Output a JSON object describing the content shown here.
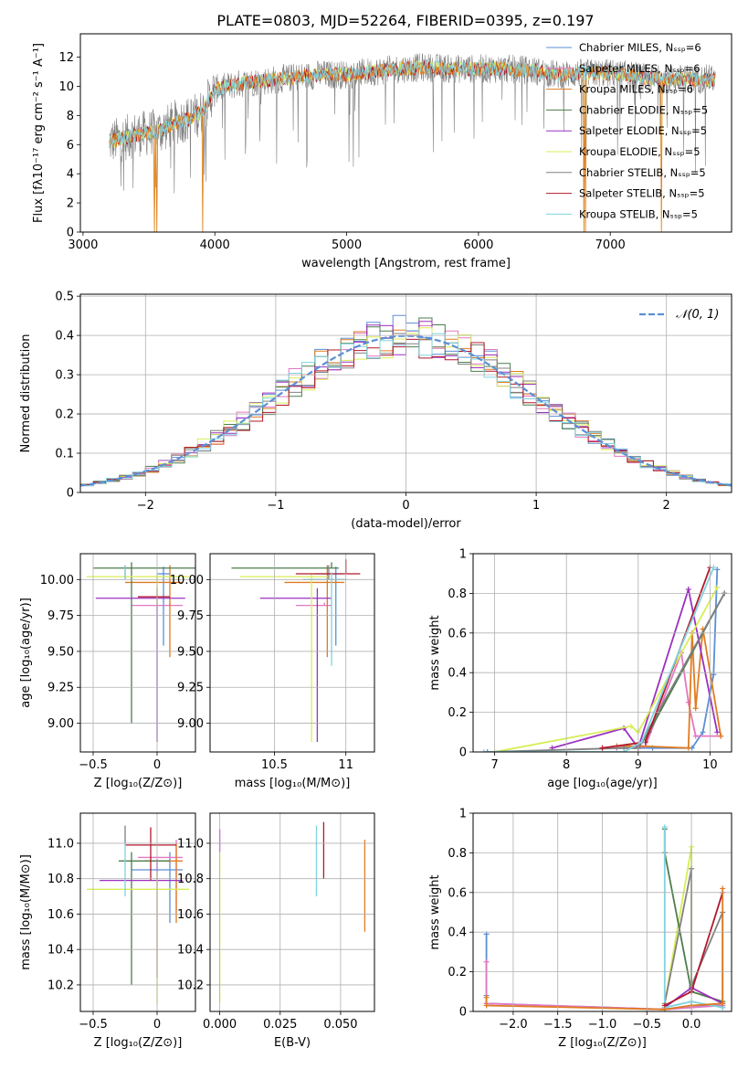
{
  "figure": {
    "title": "PLATE=0803, MJD=52264, FIBERID=0395, z=0.197"
  },
  "colors": {
    "ch_miles": "#5b8fd6",
    "sa_miles": "#e377c2",
    "kr_miles": "#e07b20",
    "ch_elodie": "#4c7d4c",
    "sa_elodie": "#9b30c0",
    "kr_elodie": "#d7ee55",
    "ch_stelib": "#808080",
    "sa_stelib": "#b2182b",
    "kr_stelib": "#7fd3e0"
  },
  "chart_data": [
    {
      "id": "spectrum",
      "type": "line",
      "title": "PLATE=0803, MJD=52264, FIBERID=0395, z=0.197",
      "xlabel": "wavelength [Angstrom, rest frame]",
      "ylabel": "Flux [fλ10⁻¹⁷ erg cm⁻² s⁻¹ A⁻¹]",
      "xlim": [
        2980,
        7920
      ],
      "ylim": [
        0,
        13.6
      ],
      "xticks": [
        3000,
        4000,
        5000,
        6000,
        7000
      ],
      "yticks": [
        0,
        2,
        4,
        6,
        8,
        10,
        12
      ],
      "grid": false,
      "legend_position": "top-right",
      "legend": [
        {
          "key": "ch_miles",
          "label": "Chabrier MILES, Nₛₛₚ=6"
        },
        {
          "key": "sa_miles",
          "label": "Salpeter MILES, Nₛₛₚ=6"
        },
        {
          "key": "kr_miles",
          "label": "Kroupa MILES, Nₛₛₚ=6"
        },
        {
          "key": "ch_elodie",
          "label": "Chabrier ELODIE, Nₛₛₚ=5"
        },
        {
          "key": "sa_elodie",
          "label": "Salpeter ELODIE, Nₛₛₚ=5"
        },
        {
          "key": "kr_elodie",
          "label": "Kroupa ELODIE, Nₛₛₚ=5"
        },
        {
          "key": "ch_stelib",
          "label": "Chabrier STELIB, Nₛₛₚ=5"
        },
        {
          "key": "sa_stelib",
          "label": "Salpeter STELIB, Nₛₛₚ=5"
        },
        {
          "key": "kr_stelib",
          "label": "Kroupa STELIB, Nₛₛₚ=5"
        }
      ],
      "continuum": [
        [
          3200,
          6.2
        ],
        [
          3300,
          6.4
        ],
        [
          3400,
          6.7
        ],
        [
          3500,
          6.8
        ],
        [
          3600,
          7.0
        ],
        [
          3700,
          7.5
        ],
        [
          3800,
          7.8
        ],
        [
          3900,
          8.2
        ],
        [
          4000,
          9.8
        ],
        [
          4200,
          10.2
        ],
        [
          4400,
          10.4
        ],
        [
          4600,
          10.6
        ],
        [
          4800,
          10.8
        ],
        [
          5000,
          10.8
        ],
        [
          5200,
          11.0
        ],
        [
          5400,
          11.2
        ],
        [
          5600,
          11.3
        ],
        [
          5800,
          11.2
        ],
        [
          6000,
          11.2
        ],
        [
          6200,
          11.2
        ],
        [
          6400,
          11.1
        ],
        [
          6600,
          10.8
        ],
        [
          6800,
          10.9
        ],
        [
          7000,
          10.9
        ],
        [
          7200,
          10.7
        ],
        [
          7300,
          10.5
        ]
      ],
      "model_drops": [
        [
          3540,
          0
        ],
        [
          3560,
          0
        ],
        [
          3910,
          0
        ],
        [
          6800,
          0
        ],
        [
          6810,
          0
        ],
        [
          7390,
          0
        ]
      ]
    },
    {
      "id": "residuals",
      "type": "histogram",
      "xlabel": "(data-model)/error",
      "ylabel": "Normed distribution",
      "xlim": [
        -2.5,
        2.5
      ],
      "ylim": [
        0,
        0.505
      ],
      "xticks": [
        -2,
        -1,
        0,
        1,
        2
      ],
      "yticks": [
        0.0,
        0.1,
        0.2,
        0.3,
        0.4,
        0.5
      ],
      "grid": true,
      "legend_position": "top-right",
      "reference_label": "𝒩(0, 1)",
      "bin_edges_start": -2.5,
      "bin_width": 0.1
    },
    {
      "id": "age_vs_z",
      "type": "errorbar",
      "xlabel": "Z [log₁₀(Z/Z⊙)]",
      "ylabel": "age  [log₁₀(age/yr)]",
      "xlim": [
        -0.6,
        0.3
      ],
      "ylim": [
        8.8,
        10.18
      ],
      "xticks": [
        -0.5,
        0.0
      ],
      "yticks": [
        9.0,
        9.25,
        9.5,
        9.75,
        10.0
      ],
      "ytick_labels": [
        "9.00",
        "9.25",
        "9.50",
        "9.75",
        "10.00"
      ],
      "grid": true,
      "points": [
        {
          "key": "ch_miles",
          "x": 0.05,
          "xerr": [
            0.05,
            0.05
          ],
          "y": 10.04,
          "yerr": [
            0.5,
            0.05
          ]
        },
        {
          "key": "sa_miles",
          "x": 0.1,
          "xerr": [
            0.3,
            0.1
          ],
          "y": 9.82,
          "yerr": [
            0.0,
            0.02
          ]
        },
        {
          "key": "kr_miles",
          "x": 0.1,
          "xerr": [
            0.35,
            0.1
          ],
          "y": 9.98,
          "yerr": [
            0.52,
            0.12
          ]
        },
        {
          "key": "ch_elodie",
          "x": -0.2,
          "xerr": [
            0.3,
            0.5
          ],
          "y": 10.08,
          "yerr": [
            1.08,
            0.04
          ]
        },
        {
          "key": "sa_elodie",
          "x": 0.0,
          "xerr": [
            0.48,
            0.22
          ],
          "y": 9.87,
          "yerr": [
            1.0,
            0.07
          ]
        },
        {
          "key": "kr_elodie",
          "x": 0.0,
          "xerr": [
            0.55,
            0.25
          ],
          "y": 10.02,
          "yerr": [
            0.2,
            0.02
          ]
        },
        {
          "key": "ch_stelib",
          "x": -0.25,
          "xerr": [
            0.0,
            0.0
          ],
          "y": 10.0,
          "yerr": [
            0.0,
            0.1
          ]
        },
        {
          "key": "sa_stelib",
          "x": 0.05,
          "xerr": [
            0.2,
            0.05
          ],
          "y": 9.88,
          "yerr": [
            0.0,
            0.0
          ]
        },
        {
          "key": "kr_stelib",
          "x": -0.25,
          "xerr": [
            0.0,
            0.0
          ],
          "y": 10.0,
          "yerr": [
            0.0,
            0.1
          ]
        }
      ]
    },
    {
      "id": "age_vs_mass",
      "type": "errorbar",
      "xlabel": "mass [log₁₀(M/M⊙)]",
      "ylabel": "",
      "xlim": [
        10.05,
        11.2
      ],
      "ylim": [
        8.8,
        10.18
      ],
      "xticks": [
        10.5,
        11.0
      ],
      "yticks": [
        9.0,
        9.25,
        9.5,
        9.75,
        10.0
      ],
      "ytick_labels": [
        "9.00",
        "9.25",
        "9.50",
        "9.75",
        "10.00"
      ],
      "grid": true,
      "points": [
        {
          "key": "ch_miles",
          "x": 10.93,
          "xerr": [
            0.15,
            0.05
          ],
          "y": 10.04,
          "yerr": [
            0.5,
            0.05
          ]
        },
        {
          "key": "sa_miles",
          "x": 10.85,
          "xerr": [
            0.2,
            0.05
          ],
          "y": 9.82,
          "yerr": [
            0.0,
            0.02
          ]
        },
        {
          "key": "kr_miles",
          "x": 10.87,
          "xerr": [
            0.3,
            0.12
          ],
          "y": 9.98,
          "yerr": [
            0.52,
            0.12
          ]
        },
        {
          "key": "ch_elodie",
          "x": 10.9,
          "xerr": [
            0.7,
            0.05
          ],
          "y": 10.08,
          "yerr": [
            0.0,
            0.04
          ]
        },
        {
          "key": "sa_elodie",
          "x": 10.8,
          "xerr": [
            0.4,
            0.1
          ],
          "y": 9.87,
          "yerr": [
            1.0,
            0.07
          ]
        },
        {
          "key": "kr_elodie",
          "x": 10.76,
          "xerr": [
            0.5,
            0.12
          ],
          "y": 10.02,
          "yerr": [
            1.15,
            0.02
          ]
        },
        {
          "key": "ch_stelib",
          "x": 10.88,
          "xerr": [
            0.0,
            0.0
          ],
          "y": 10.0,
          "yerr": [
            0.0,
            0.1
          ]
        },
        {
          "key": "sa_stelib",
          "x": 11.0,
          "xerr": [
            0.35,
            0.1
          ],
          "y": 10.04,
          "yerr": [
            0.0,
            0.1
          ]
        },
        {
          "key": "kr_stelib",
          "x": 10.9,
          "xerr": [
            0.2,
            0.1
          ],
          "y": 10.0,
          "yerr": [
            0.6,
            0.05
          ]
        }
      ]
    },
    {
      "id": "mass_weight_vs_age",
      "type": "line",
      "xlabel": "age  [log₁₀(age/yr)]",
      "ylabel": "mass weight",
      "xlim": [
        6.7,
        10.3
      ],
      "ylim": [
        0,
        1.0
      ],
      "xticks": [
        7,
        8,
        9,
        10
      ],
      "yticks": [
        0.0,
        0.2,
        0.4,
        0.6,
        0.8,
        1.0
      ],
      "grid": true,
      "series": [
        {
          "key": "ch_miles",
          "x": [
            8.7,
            9.0,
            9.2,
            9.75,
            9.9,
            10.05,
            10.1
          ],
          "y": [
            0.02,
            0.02,
            0.02,
            0.02,
            0.1,
            0.39,
            0.92
          ]
        },
        {
          "key": "sa_miles",
          "x": [
            8.7,
            9.0,
            9.1,
            9.6,
            9.7,
            9.8,
            10.15
          ],
          "y": [
            0.02,
            0.02,
            0.03,
            0.5,
            0.25,
            0.08,
            0.08
          ]
        },
        {
          "key": "kr_miles",
          "x": [
            8.7,
            9.0,
            9.7,
            9.75,
            9.8,
            9.9,
            10.15
          ],
          "y": [
            0.03,
            0.03,
            0.02,
            0.6,
            0.22,
            0.62,
            0.08
          ]
        },
        {
          "key": "ch_elodie",
          "x": [
            8.8,
            9.0,
            9.15,
            10.2
          ],
          "y": [
            0.02,
            0.02,
            0.1,
            0.8
          ]
        },
        {
          "key": "sa_elodie",
          "x": [
            7.8,
            8.8,
            9.0,
            9.7,
            10.1
          ],
          "y": [
            0.02,
            0.12,
            0.02,
            0.82,
            0.1
          ]
        },
        {
          "key": "kr_elodie",
          "x": [
            7.0,
            8.9,
            9.0,
            10.1
          ],
          "y": [
            0.0,
            0.13,
            0.1,
            0.83
          ]
        },
        {
          "key": "ch_stelib",
          "x": [
            6.9,
            8.8,
            9.0,
            10.2
          ],
          "y": [
            0.0,
            0.02,
            0.02,
            0.8
          ]
        },
        {
          "key": "sa_stelib",
          "x": [
            8.5,
            9.1,
            10.0
          ],
          "y": [
            0.02,
            0.05,
            0.93
          ]
        },
        {
          "key": "kr_stelib",
          "x": [
            6.85,
            8.8,
            9.05,
            10.05
          ],
          "y": [
            0.0,
            0.0,
            0.05,
            0.93
          ]
        }
      ]
    },
    {
      "id": "mass_vs_z",
      "type": "errorbar",
      "xlabel": "Z [log₁₀(Z/Z⊙)]",
      "ylabel": "mass [log₁₀(M/M⊙)]",
      "xlim": [
        -0.6,
        0.3
      ],
      "ylim": [
        10.05,
        11.17
      ],
      "xticks": [
        -0.5,
        0.0
      ],
      "yticks": [
        10.2,
        10.4,
        10.6,
        10.8,
        11.0
      ],
      "ytick_labels": [
        "10.2",
        "10.4",
        "10.6",
        "10.8",
        "11.0"
      ],
      "grid": true,
      "points": [
        {
          "key": "ch_miles",
          "x": 0.1,
          "xerr": [
            0.3,
            0.1
          ],
          "y": 10.85,
          "yerr": [
            0.3,
            0.1
          ]
        },
        {
          "key": "sa_miles",
          "x": 0.15,
          "xerr": [
            0.3,
            0.05
          ],
          "y": 10.92,
          "yerr": [
            0.3,
            0.1
          ]
        },
        {
          "key": "kr_miles",
          "x": 0.15,
          "xerr": [
            0.25,
            0.05
          ],
          "y": 10.9,
          "yerr": [
            0.35,
            0.1
          ]
        },
        {
          "key": "ch_elodie",
          "x": -0.2,
          "xerr": [
            0.1,
            0.3
          ],
          "y": 10.9,
          "yerr": [
            0.7,
            0.05
          ]
        },
        {
          "key": "sa_elodie",
          "x": 0.0,
          "xerr": [
            0.45,
            0.2
          ],
          "y": 10.79,
          "yerr": [
            0.55,
            0.12
          ]
        },
        {
          "key": "kr_elodie",
          "x": 0.0,
          "xerr": [
            0.55,
            0.25
          ],
          "y": 10.74,
          "yerr": [
            0.65,
            0.1
          ]
        },
        {
          "key": "ch_stelib",
          "x": -0.25,
          "xerr": [
            0.0,
            0.0
          ],
          "y": 11.0,
          "yerr": [
            0.0,
            0.1
          ]
        },
        {
          "key": "sa_stelib",
          "x": -0.05,
          "xerr": [
            0.2,
            0.2
          ],
          "y": 10.99,
          "yerr": [
            0.2,
            0.1
          ]
        },
        {
          "key": "kr_stelib",
          "x": -0.25,
          "xerr": [
            0.0,
            0.0
          ],
          "y": 10.9,
          "yerr": [
            0.2,
            0.1
          ]
        }
      ]
    },
    {
      "id": "mass_vs_ebv",
      "type": "errorbar",
      "xlabel": "E(B-V)",
      "ylabel": "",
      "xlim": [
        -0.004,
        0.064
      ],
      "ylim": [
        10.05,
        11.17
      ],
      "xticks": [
        0.0,
        0.025,
        0.05
      ],
      "xtick_labels": [
        "0.000",
        "0.025",
        "0.050"
      ],
      "yticks": [
        10.2,
        10.4,
        10.6,
        10.8,
        11.0
      ],
      "ytick_labels": [
        "10.2",
        "10.4",
        "10.6",
        "10.8",
        "11.0"
      ],
      "grid": true,
      "points": [
        {
          "key": "sa_elodie",
          "x": 0.0,
          "xerr": [
            0,
            0
          ],
          "y": 11.0,
          "yerr": [
            0.05,
            0.08
          ]
        },
        {
          "key": "kr_elodie",
          "x": 0.0,
          "xerr": [
            0,
            0
          ],
          "y": 10.75,
          "yerr": [
            0.65,
            0.2
          ]
        },
        {
          "key": "kr_stelib",
          "x": 0.04,
          "xerr": [
            0,
            0
          ],
          "y": 10.9,
          "yerr": [
            0.2,
            0.2
          ]
        },
        {
          "key": "sa_stelib",
          "x": 0.043,
          "xerr": [
            0,
            0
          ],
          "y": 11.0,
          "yerr": [
            0.2,
            0.12
          ]
        },
        {
          "key": "kr_miles",
          "x": 0.06,
          "xerr": [
            0,
            0
          ],
          "y": 10.75,
          "yerr": [
            0.25,
            0.27
          ]
        }
      ]
    },
    {
      "id": "mass_weight_vs_z",
      "type": "line",
      "xlabel": "Z [log₁₀(Z/Z⊙)]",
      "ylabel": "mass weight",
      "xlim": [
        -2.45,
        0.45
      ],
      "ylim": [
        0,
        1.0
      ],
      "xticks": [
        -2.0,
        -1.5,
        -1.0,
        -0.5,
        0.0
      ],
      "xtick_labels": [
        "−2.0",
        "−1.5",
        "−1.0",
        "−0.5",
        "0.0"
      ],
      "yticks": [
        0.0,
        0.2,
        0.4,
        0.6,
        0.8,
        1.0
      ],
      "grid": true,
      "series": [
        {
          "key": "ch_miles",
          "x": [
            -2.3,
            -2.3,
            -2.3,
            -0.3,
            0.0,
            0.35
          ],
          "y": [
            0.39,
            0.08,
            0.04,
            0.01,
            0.03,
            0.03
          ]
        },
        {
          "key": "sa_miles",
          "x": [
            -2.3,
            -2.3,
            -0.3,
            0.0,
            0.35
          ],
          "y": [
            0.25,
            0.04,
            0.01,
            0.02,
            0.03
          ]
        },
        {
          "key": "kr_elodie",
          "x": [
            -0.3,
            0.0,
            0.0,
            0.35
          ],
          "y": [
            0.04,
            0.83,
            0.1,
            0.05
          ]
        },
        {
          "key": "ch_elodie",
          "x": [
            -0.3,
            -0.3,
            0.0,
            0.35
          ],
          "y": [
            0.92,
            0.8,
            0.1,
            0.05
          ]
        },
        {
          "key": "sa_elodie",
          "x": [
            -0.3,
            0.0,
            0.35
          ],
          "y": [
            0.02,
            0.12,
            0.04
          ]
        },
        {
          "key": "ch_stelib",
          "x": [
            -0.3,
            0.0,
            0.0,
            0.35,
            0.35
          ],
          "y": [
            0.04,
            0.72,
            0.13,
            0.5,
            0.02
          ]
        },
        {
          "key": "kr_stelib",
          "x": [
            -0.3,
            -0.3,
            0.0,
            0.35
          ],
          "y": [
            0.93,
            0.02,
            0.05,
            0.02
          ]
        },
        {
          "key": "sa_stelib",
          "x": [
            -0.3,
            0.0,
            0.35
          ],
          "y": [
            0.03,
            0.1,
            0.6
          ]
        },
        {
          "key": "kr_miles",
          "x": [
            -2.3,
            -2.3,
            -0.3,
            0.0,
            0.35,
            0.35
          ],
          "y": [
            0.07,
            0.03,
            0.01,
            0.03,
            0.04,
            0.62
          ]
        }
      ]
    }
  ]
}
